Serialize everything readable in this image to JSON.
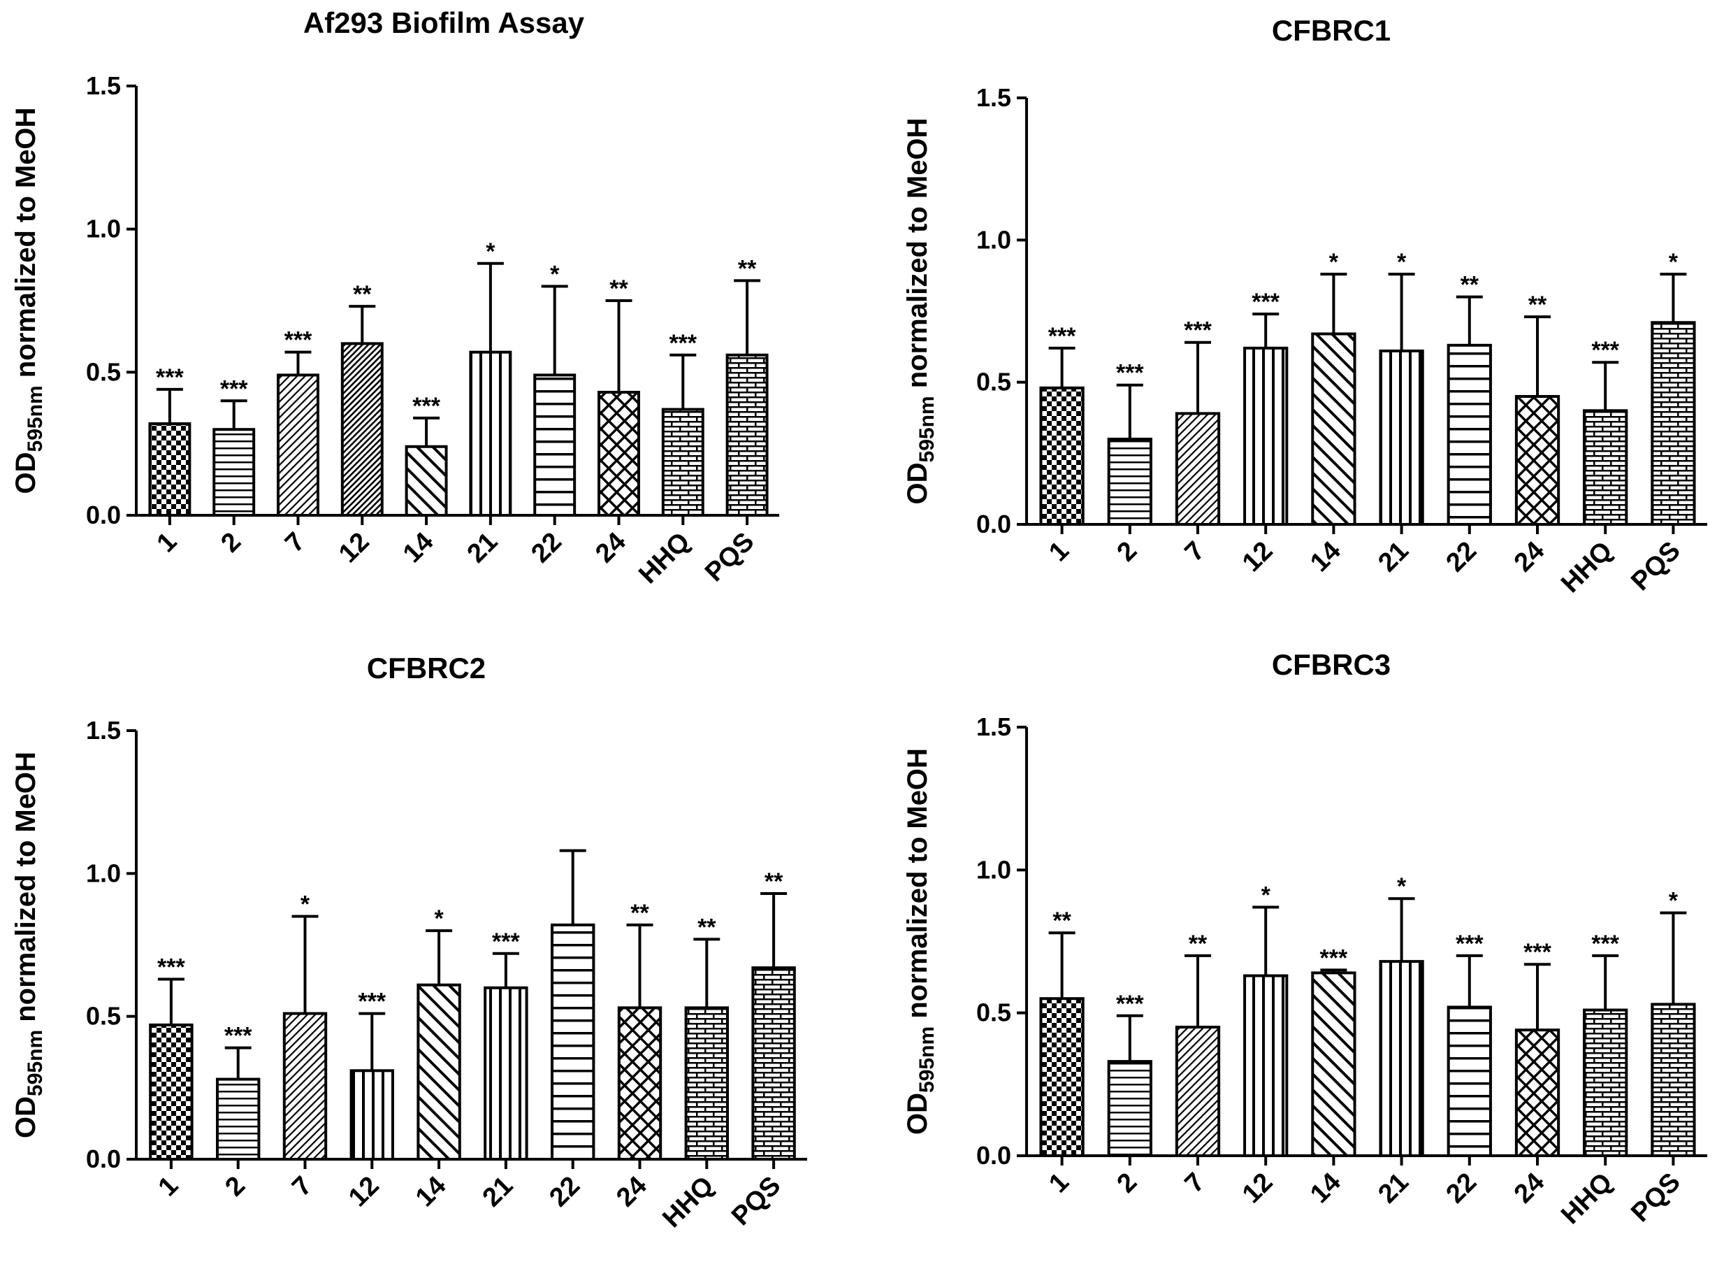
{
  "figure_title": "Af293 Biofilm Assay and CFBRC1–3 biofilm panels",
  "chart_data": [
    {
      "type": "bar",
      "title": "Af293 Biofilm Assay",
      "ylabel": {
        "prefix": "OD",
        "subscript": "595nm",
        "suffix": " normalized to MeOH"
      },
      "xlabel": "",
      "ylim": [
        0,
        1.5
      ],
      "yticks": [
        "0.0",
        "0.5",
        "1.0",
        "1.5"
      ],
      "categories": [
        "1",
        "2",
        "7",
        "12",
        "14",
        "21",
        "22",
        "24",
        "HHQ",
        "PQS"
      ],
      "values": [
        0.32,
        0.3,
        0.49,
        0.6,
        0.24,
        0.57,
        0.49,
        0.43,
        0.37,
        0.56
      ],
      "errors": [
        0.12,
        0.1,
        0.08,
        0.13,
        0.1,
        0.31,
        0.31,
        0.32,
        0.19,
        0.26
      ],
      "significance": [
        "***",
        "***",
        "***",
        "**",
        "***",
        "*",
        "*",
        "**",
        "***",
        "**"
      ],
      "patterns": [
        "checker",
        "hlines",
        "diag-fine",
        "diag-dense",
        "diag-back",
        "vlines",
        "hlines-wide",
        "crosshatch",
        "brick",
        "brick"
      ]
    },
    {
      "type": "bar",
      "title": "CFBRC1",
      "ylabel": {
        "prefix": "OD",
        "subscript": "595nm",
        "suffix": " normalized to MeOH"
      },
      "xlabel": "",
      "ylim": [
        0,
        1.5
      ],
      "yticks": [
        "0.0",
        "0.5",
        "1.0",
        "1.5"
      ],
      "categories": [
        "1",
        "2",
        "7",
        "12",
        "14",
        "21",
        "22",
        "24",
        "HHQ",
        "PQS"
      ],
      "values": [
        0.48,
        0.3,
        0.39,
        0.62,
        0.67,
        0.61,
        0.63,
        0.45,
        0.4,
        0.71
      ],
      "errors": [
        0.14,
        0.19,
        0.25,
        0.12,
        0.21,
        0.27,
        0.17,
        0.28,
        0.17,
        0.17
      ],
      "significance": [
        "***",
        "***",
        "***",
        "***",
        "*",
        "*",
        "**",
        "**",
        "***",
        "*"
      ],
      "patterns": [
        "checker",
        "hlines",
        "diag-fine",
        "vlines",
        "diag-back",
        "vlines",
        "hlines-wide",
        "crosshatch",
        "brick",
        "brick"
      ]
    },
    {
      "type": "bar",
      "title": "CFBRC2",
      "ylabel": {
        "prefix": "OD",
        "subscript": "595nm",
        "suffix": " normalized to MeOH"
      },
      "xlabel": "",
      "ylim": [
        0,
        1.5
      ],
      "yticks": [
        "0.0",
        "0.5",
        "1.0",
        "1.5"
      ],
      "categories": [
        "1",
        "2",
        "7",
        "12",
        "14",
        "21",
        "22",
        "24",
        "HHQ",
        "PQS"
      ],
      "values": [
        0.47,
        0.28,
        0.51,
        0.31,
        0.61,
        0.6,
        0.82,
        0.53,
        0.53,
        0.67
      ],
      "errors": [
        0.16,
        0.11,
        0.34,
        0.2,
        0.19,
        0.12,
        0.26,
        0.29,
        0.24,
        0.26
      ],
      "significance": [
        "***",
        "***",
        "*",
        "***",
        "*",
        "***",
        "",
        "**",
        "**",
        "**"
      ],
      "patterns": [
        "checker",
        "hlines",
        "diag-fine",
        "vlines",
        "diag-back",
        "vlines",
        "hlines-wide",
        "crosshatch",
        "brick",
        "brick"
      ]
    },
    {
      "type": "bar",
      "title": "CFBRC3",
      "ylabel": {
        "prefix": "OD",
        "subscript": "595nm",
        "suffix": " normalized to MeOH"
      },
      "xlabel": "",
      "ylim": [
        0,
        1.5
      ],
      "yticks": [
        "0.0",
        "0.5",
        "1.0",
        "1.5"
      ],
      "categories": [
        "1",
        "2",
        "7",
        "12",
        "14",
        "21",
        "22",
        "24",
        "HHQ",
        "PQS"
      ],
      "values": [
        0.55,
        0.33,
        0.45,
        0.63,
        0.64,
        0.68,
        0.52,
        0.44,
        0.51,
        0.53
      ],
      "errors": [
        0.23,
        0.16,
        0.25,
        0.24,
        0.01,
        0.22,
        0.18,
        0.23,
        0.19,
        0.32
      ],
      "significance": [
        "**",
        "***",
        "**",
        "*",
        "***",
        "*",
        "***",
        "***",
        "***",
        "*"
      ],
      "patterns": [
        "checker",
        "hlines",
        "diag-fine",
        "vlines",
        "diag-back",
        "vlines",
        "hlines-wide",
        "crosshatch",
        "brick",
        "brick"
      ]
    }
  ]
}
